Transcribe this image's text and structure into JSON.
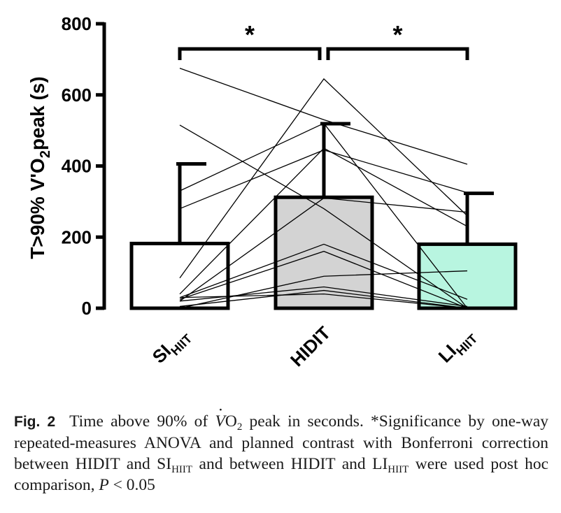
{
  "chart_data": {
    "type": "bar",
    "ylabel": "T>90% V'O",
    "ylabel_sub": "2",
    "ylabel_suffix": "peak (s)",
    "ylim": [
      0,
      800
    ],
    "yticks": [
      {
        "value": 0,
        "label": "0"
      },
      {
        "value": 200,
        "label": "200"
      },
      {
        "value": 400,
        "label": "400"
      },
      {
        "value": 600,
        "label": "600"
      },
      {
        "value": 800,
        "label": "800"
      }
    ],
    "categories": [
      {
        "main": "SI",
        "sub": "HIIT"
      },
      {
        "main": "HIDIT",
        "sub": ""
      },
      {
        "main": "LI",
        "sub": "HIIT"
      }
    ],
    "values": [
      182,
      312,
      180
    ],
    "error_upper": [
      406,
      519,
      323
    ],
    "bar_colors": [
      "#ffffff",
      "#d3d3d3",
      "#b8f5e0"
    ],
    "individual_series": [
      [
        675,
        530,
        405
      ],
      [
        515,
        280,
        0
      ],
      [
        330,
        520,
        0
      ],
      [
        280,
        445,
        325
      ],
      [
        85,
        645,
        260
      ],
      [
        40,
        450,
        230
      ],
      [
        20,
        310,
        270
      ],
      [
        30,
        180,
        25
      ],
      [
        25,
        160,
        0
      ],
      [
        0,
        90,
        105
      ],
      [
        5,
        50,
        0
      ],
      [
        30,
        40,
        0
      ],
      [
        20,
        60,
        5
      ]
    ],
    "significance": [
      {
        "from": 0,
        "to": 1,
        "label": "*"
      },
      {
        "from": 1,
        "to": 2,
        "label": "*"
      }
    ]
  },
  "caption": {
    "fig_label": "Fig. 2",
    "t1": "Time above 90% of ",
    "t_vo": "V",
    "t_o": "O",
    "t_sub2": "2",
    "t2": " peak in seconds. *Significance by one-way repeated-measures ANOVA and planned contrast with Bonferroni correction between HIDIT and SI",
    "t_sub_hiit1": "HIIT",
    "t3": " and between HIDIT and LI",
    "t_sub_hiit2": "HIIT",
    "t4": " were used post hoc comparison, ",
    "t_p": "P",
    "t5": " < 0.05"
  }
}
